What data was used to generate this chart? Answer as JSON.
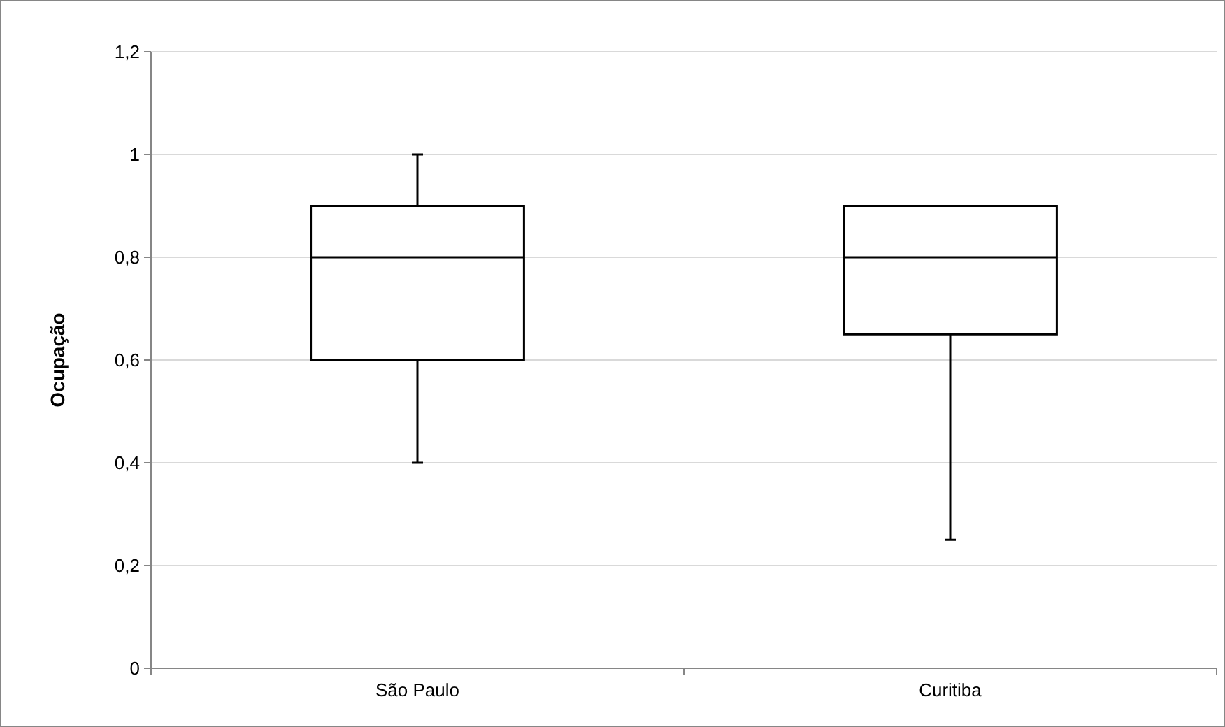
{
  "chart_data": {
    "type": "box",
    "ylabel": "Ocupação",
    "categories": [
      "São Paulo",
      "Curitiba"
    ],
    "boxes": [
      {
        "low": 0.4,
        "q1": 0.6,
        "median": 0.8,
        "q3": 0.9,
        "high": 1.0
      },
      {
        "low": 0.25,
        "q1": 0.65,
        "median": 0.8,
        "q3": 0.9,
        "high": 0.9
      }
    ],
    "ylim": [
      0,
      1.2
    ],
    "yticks": [
      {
        "value": 0,
        "label": "0"
      },
      {
        "value": 0.2,
        "label": "0,2"
      },
      {
        "value": 0.4,
        "label": "0,4"
      },
      {
        "value": 0.6,
        "label": "0,6"
      },
      {
        "value": 0.8,
        "label": "0,8"
      },
      {
        "value": 1,
        "label": "1"
      },
      {
        "value": 1.2,
        "label": "1,2"
      }
    ],
    "grid": "y"
  }
}
